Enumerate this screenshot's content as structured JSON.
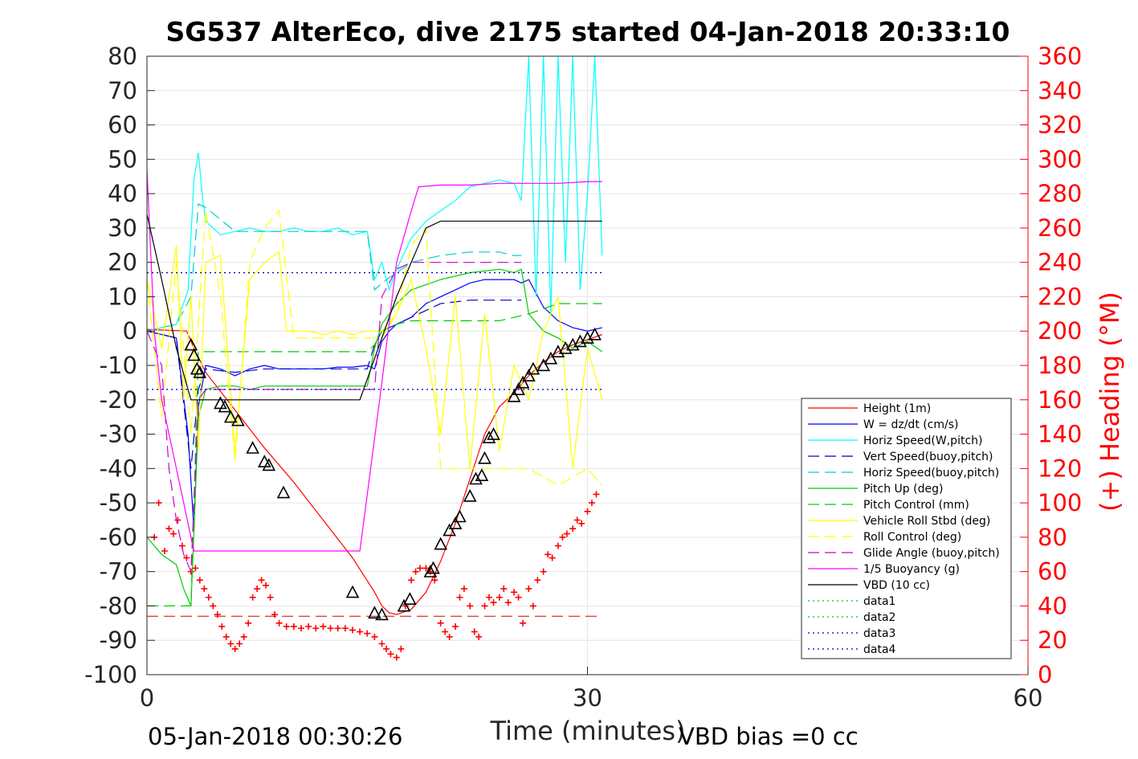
{
  "chart_data": {
    "type": "line",
    "title": "SG537 AlterEco, dive 2175 started 04-Jan-2018 20:33:10",
    "xlabel": "Time (minutes)",
    "ylabel_right": "(+) Heading (°M)",
    "xlim": [
      0,
      60
    ],
    "ylim": [
      -100,
      80
    ],
    "ylim_right": [
      0,
      360
    ],
    "xticks": [
      "0",
      "30",
      "60"
    ],
    "yticks_left": [
      "80",
      "70",
      "60",
      "50",
      "40",
      "30",
      "20",
      "10",
      "0",
      "-10",
      "-20",
      "-30",
      "-40",
      "-50",
      "-60",
      "-70",
      "-80",
      "-90",
      "-100"
    ],
    "yticks_right": [
      "360",
      "340",
      "320",
      "300",
      "280",
      "260",
      "240",
      "220",
      "200",
      "180",
      "160",
      "140",
      "120",
      "100",
      "80",
      "60",
      "40",
      "20",
      "0"
    ],
    "grid": true,
    "legend_position": "bottom-right",
    "footer_left": "05-Jan-2018 00:30:26",
    "footer_right": "VBD bias =0 cc",
    "series": [
      {
        "name": "Height (1m)",
        "color": "#ff0000",
        "style": "solid",
        "x": [
          0,
          2.7,
          3.2,
          4,
          6,
          8,
          10,
          12,
          14,
          15.5,
          16,
          16.5,
          17,
          18,
          19,
          20,
          21,
          22,
          23,
          24,
          25,
          26,
          27,
          28,
          29,
          30,
          31
        ],
        "y": [
          0.5,
          0,
          -5,
          -12,
          -23,
          -34,
          -44,
          -55,
          -66,
          -76,
          -80,
          -82,
          -82.5,
          -81,
          -76,
          -67,
          -56,
          -43,
          -30,
          -22,
          -18,
          -13,
          -9,
          -6,
          -4,
          -2.5,
          -1
        ]
      },
      {
        "name": "W = dz/dt (cm/s)",
        "color": "#0000ff",
        "style": "solid",
        "x": [
          0,
          2,
          2.8,
          3.2,
          3.5,
          4,
          5,
          6,
          7,
          8,
          9,
          10,
          11,
          12,
          13,
          14,
          15,
          15.5,
          16,
          16.5,
          17,
          18,
          19,
          20,
          21,
          22,
          23,
          24,
          25,
          25.5,
          26,
          27,
          28,
          29,
          30,
          31
        ],
        "y": [
          0,
          -2,
          -30,
          -58,
          -22,
          -10,
          -11,
          -13,
          -11,
          -10,
          -11,
          -11,
          -11,
          -11,
          -10.5,
          -10.5,
          -10,
          -11,
          -3,
          0,
          2,
          4,
          8,
          10,
          12,
          14,
          15,
          15,
          15,
          14,
          15,
          7,
          3,
          1,
          0,
          1
        ]
      },
      {
        "name": "Horiz Speed(W,pitch)",
        "color": "#00ffff",
        "style": "solid",
        "x": [
          0,
          2,
          2.8,
          3.2,
          3.5,
          3.8,
          4,
          5,
          6,
          7,
          8,
          9,
          10,
          11,
          12,
          13,
          14,
          15,
          15.5,
          16,
          16.5,
          17,
          18,
          19,
          20,
          21,
          22,
          23,
          24,
          25,
          25.5,
          26,
          26.5,
          27,
          27.5,
          28,
          28.5,
          29,
          29.5,
          30,
          30.5,
          31
        ],
        "y": [
          0,
          2,
          12,
          44,
          52,
          38,
          32,
          28,
          29,
          30,
          29,
          29,
          30,
          29,
          29,
          30,
          28,
          29,
          15,
          20,
          12,
          18,
          27,
          32,
          35,
          38,
          42,
          43,
          44,
          43,
          38,
          80,
          10,
          80,
          5,
          80,
          20,
          80,
          12,
          40,
          80,
          22
        ]
      },
      {
        "name": "Vert Speed(buoy,pitch)",
        "color": "#0000cc",
        "style": "dashed",
        "x": [
          0,
          2,
          3,
          3.5,
          4,
          6,
          8,
          10,
          12,
          14,
          15,
          15.5,
          16,
          17,
          18,
          20,
          22,
          24,
          25,
          25.5
        ],
        "y": [
          0,
          -2,
          -40,
          -17,
          -11,
          -12,
          -11,
          -11,
          -11,
          -11,
          -11,
          -4,
          0,
          2,
          4,
          8,
          9,
          9,
          9,
          9
        ]
      },
      {
        "name": "Horiz Speed(buoy,pitch)",
        "color": "#00cccc",
        "style": "dashed",
        "x": [
          0,
          2,
          3,
          3.5,
          4,
          6,
          8,
          10,
          12,
          14,
          15,
          15.5,
          16,
          17,
          18,
          20,
          22,
          24,
          25,
          25.5
        ],
        "y": [
          0,
          2,
          10,
          37,
          36,
          29,
          29,
          29,
          29,
          29,
          29,
          12,
          14,
          17,
          20,
          22,
          23,
          23,
          22,
          22
        ]
      },
      {
        "name": "Pitch Up (deg)",
        "color": "#00cc00",
        "style": "solid",
        "x": [
          0,
          1,
          2,
          2.5,
          3,
          3.5,
          4,
          5,
          6,
          7,
          8,
          10,
          12,
          14,
          15,
          15.5,
          16,
          17,
          18,
          20,
          22,
          24,
          25,
          25.5,
          26,
          27,
          28,
          29,
          30,
          31
        ],
        "y": [
          -60,
          -65,
          -68,
          -75,
          -80,
          -25,
          -17,
          -16,
          -16,
          -17,
          -16,
          -16,
          -16,
          -16,
          -16,
          -5,
          2,
          8,
          12,
          15,
          17,
          18,
          17,
          18,
          5,
          0,
          -2,
          -5,
          -3,
          -6
        ]
      },
      {
        "name": "Pitch Control (mm)",
        "color": "#00cc00",
        "style": "dashed",
        "x": [
          0,
          2,
          3,
          3.5,
          4,
          6,
          8,
          10,
          12,
          14,
          15,
          15.5,
          16,
          17,
          18,
          20,
          22,
          24,
          26,
          28,
          30,
          31
        ],
        "y": [
          -80,
          -80,
          -80,
          -6,
          -6,
          -6,
          -6,
          -6,
          -6,
          -6,
          -6,
          -4,
          0,
          2,
          3,
          3,
          3,
          3,
          5,
          8,
          8,
          8
        ]
      },
      {
        "name": "Vehicle Roll Stbd (deg)",
        "color": "#ffff00",
        "style": "solid",
        "x": [
          0,
          1,
          2,
          2.5,
          3,
          3.5,
          4,
          5,
          6,
          7,
          8,
          9,
          9.5,
          10,
          11,
          12,
          13,
          14,
          15,
          16,
          17,
          18,
          19,
          20,
          21,
          22,
          23,
          24,
          25,
          26,
          27,
          28,
          29,
          30,
          31
        ],
        "y": [
          15,
          -5,
          25,
          -20,
          10,
          -35,
          20,
          22,
          -35,
          15,
          20,
          23,
          0,
          0,
          0,
          -1,
          0,
          -1,
          0,
          0,
          5,
          15,
          -5,
          -30,
          10,
          -40,
          5,
          -35,
          -10,
          -20,
          0,
          10,
          -40,
          -5,
          -20
        ]
      },
      {
        "name": "Roll Control (deg)",
        "color": "#ffff00",
        "style": "dashed",
        "x": [
          0,
          1,
          2,
          3,
          4,
          5,
          6,
          7,
          8,
          9,
          10,
          12,
          14,
          15,
          16,
          17,
          18,
          19,
          20,
          22,
          24,
          26,
          28,
          30,
          31
        ],
        "y": [
          15,
          -25,
          20,
          -30,
          35,
          10,
          -38,
          20,
          30,
          35,
          -2,
          -2,
          -2,
          -2,
          -2,
          5,
          25,
          30,
          -40,
          -40,
          -40,
          -40,
          -45,
          -40,
          -45
        ]
      },
      {
        "name": "Glide Angle (buoy,pitch)",
        "color": "#cc00cc",
        "style": "dashed",
        "x": [
          0,
          1,
          1.5,
          2,
          2.5,
          3,
          3.5,
          4,
          6,
          8,
          10,
          12,
          14,
          15,
          15.5,
          16,
          17,
          18,
          20,
          22,
          24,
          25,
          25.5
        ],
        "y": [
          0,
          -10,
          -40,
          -55,
          -65,
          -70,
          -20,
          -17,
          -17,
          -17,
          -17,
          -17,
          -17,
          -17,
          -17,
          10,
          18,
          20,
          20,
          20,
          20,
          20,
          20
        ]
      },
      {
        "name": "1/5 Buoyancy (g)",
        "color": "#ff00ff",
        "style": "solid",
        "x": [
          0,
          0.5,
          1,
          2,
          3,
          3.2,
          4,
          6,
          8,
          10,
          12,
          14,
          14.5,
          16,
          17,
          18,
          18.5,
          20,
          22,
          24,
          26,
          28,
          30,
          31
        ],
        "y": [
          47,
          0,
          -20,
          -40,
          -60,
          -64,
          -64,
          -64,
          -64,
          -64,
          -64,
          -64,
          -64,
          -15,
          20,
          35,
          42,
          42.5,
          42.5,
          43,
          43,
          43,
          43.5,
          43.5
        ]
      },
      {
        "name": "VBD (10 cc)",
        "color": "#000000",
        "style": "solid",
        "x": [
          0,
          1,
          2,
          3,
          3.5,
          6,
          10,
          14,
          14.5,
          16,
          17,
          18,
          19,
          20,
          22,
          24,
          26,
          28,
          30,
          31
        ],
        "y": [
          34,
          15,
          -5,
          -20,
          -20,
          -20,
          -20,
          -20,
          -20,
          -2,
          10,
          20,
          30,
          32,
          32,
          32,
          32,
          32,
          32,
          32
        ]
      },
      {
        "name": "data1",
        "color": "#00cc00",
        "style": "dotted",
        "x": [
          0,
          31
        ],
        "y": [
          17,
          17
        ]
      },
      {
        "name": "data2",
        "color": "#00cc00",
        "style": "dotted",
        "x": [
          0,
          31
        ],
        "y": [
          -17,
          -17
        ]
      },
      {
        "name": "data3",
        "color": "#0000cc",
        "style": "dotted",
        "x": [
          0,
          31
        ],
        "y": [
          17,
          17
        ]
      },
      {
        "name": "data4",
        "color": "#0000cc",
        "style": "dotted",
        "x": [
          0,
          31
        ],
        "y": [
          -17,
          -17
        ]
      }
    ],
    "height_markers": {
      "x": [
        3,
        3.2,
        3.4,
        3.6,
        5,
        5.3,
        5.7,
        6.2,
        7.2,
        8,
        8.3,
        9.3,
        14,
        15.5,
        16,
        17.5,
        17.9,
        19.3,
        19.5,
        20,
        20.6,
        21,
        21.3,
        22,
        22.4,
        22.8,
        23,
        23.3,
        23.6,
        25,
        25.3,
        25.6,
        26,
        26.3,
        27,
        27.5,
        28,
        28.5,
        29,
        29.5,
        30,
        30.5
      ],
      "y": [
        -4,
        -7,
        -11,
        -12,
        -21,
        -22,
        -25,
        -26,
        -34,
        -38,
        -39,
        -47,
        -76,
        -82,
        -82.5,
        -80,
        -78,
        -70,
        -69,
        -62,
        -58,
        -56,
        -54,
        -48,
        -43,
        -42,
        -37,
        -31,
        -30,
        -19,
        -17,
        -15,
        -13,
        -11,
        -10,
        -8,
        -6,
        -5,
        -4,
        -3,
        -2,
        -1
      ]
    },
    "heading_marker_color": "#ff0000",
    "heading_dashed_level": 34
  }
}
